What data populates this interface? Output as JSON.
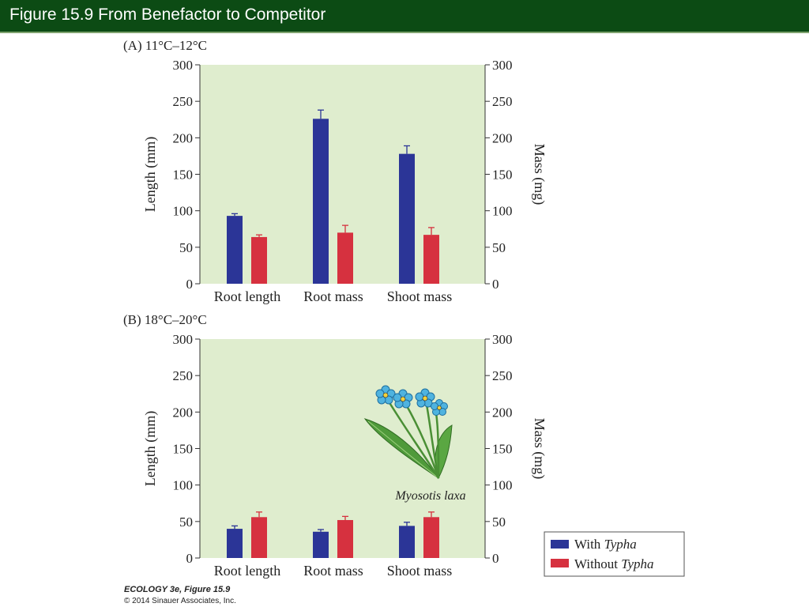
{
  "header": {
    "title": "Figure 15.9  From Benefactor to Competitor"
  },
  "colors": {
    "with": "#2b3597",
    "without": "#d6313f",
    "plot_bg": "#dfedce",
    "header_bg": "#0c4b14"
  },
  "chart_data": [
    {
      "type": "bar",
      "title": "(A)  11°C–12°C",
      "categories": [
        "Root length",
        "Root mass",
        "Shoot mass"
      ],
      "ylabel": "Length (mm)",
      "y2label": "Mass (mg)",
      "ylim": [
        0,
        300
      ],
      "yticks": [
        "0",
        "50",
        "100",
        "150",
        "200",
        "250",
        "300"
      ],
      "grid": false,
      "series": [
        {
          "name": "With Typha",
          "values": [
            93,
            226,
            178
          ],
          "errors": [
            3,
            12,
            11
          ]
        },
        {
          "name": "Without Typha",
          "values": [
            64,
            70,
            67
          ],
          "errors": [
            3,
            10,
            10
          ]
        }
      ]
    },
    {
      "type": "bar",
      "title": "(B)  18°C–20°C",
      "categories": [
        "Root length",
        "Root mass",
        "Shoot mass"
      ],
      "ylabel": "Length (mm)",
      "y2label": "Mass (mg)",
      "ylim": [
        0,
        300
      ],
      "yticks": [
        "0",
        "50",
        "100",
        "150",
        "200",
        "250",
        "300"
      ],
      "grid": false,
      "series": [
        {
          "name": "With Typha",
          "values": [
            40,
            36,
            44
          ],
          "errors": [
            4,
            3,
            5
          ]
        },
        {
          "name": "Without Typha",
          "values": [
            56,
            52,
            56
          ],
          "errors": [
            7,
            5,
            7
          ]
        }
      ]
    }
  ],
  "legend": {
    "with_prefix": "With ",
    "with_italic": "Typha",
    "without_prefix": "Without ",
    "without_italic": "Typha"
  },
  "illustration": {
    "caption": "Myosotis laxa"
  },
  "credits": {
    "line1": "ECOLOGY 3e, Figure 15.9",
    "line2": "© 2014 Sinauer Associates, Inc."
  }
}
